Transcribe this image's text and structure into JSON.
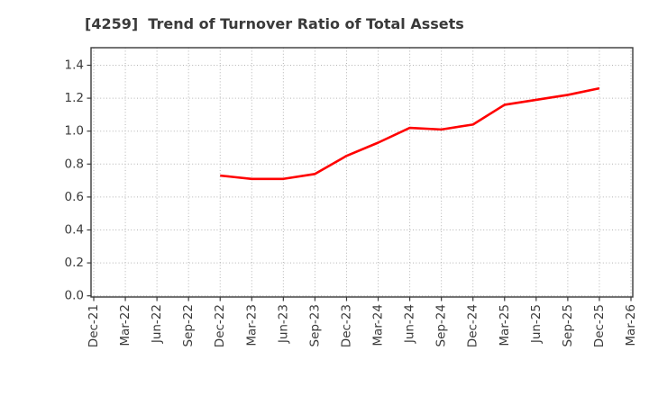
{
  "chart_data": {
    "type": "line",
    "title": "[4259]  Trend of Turnover Ratio of Total Assets",
    "xlabel": "",
    "ylabel": "",
    "categories": [
      "Dec-21",
      "Mar-22",
      "Jun-22",
      "Sep-22",
      "Dec-22",
      "Mar-23",
      "Jun-23",
      "Sep-23",
      "Dec-23",
      "Mar-24",
      "Jun-24",
      "Sep-24",
      "Dec-24",
      "Mar-25",
      "Jun-25",
      "Sep-25",
      "Dec-25",
      "Mar-26"
    ],
    "yticks": [
      0.0,
      0.2,
      0.4,
      0.6,
      0.8,
      1.0,
      1.2,
      1.4
    ],
    "ylim": [
      0.0,
      1.51
    ],
    "grid": "dotted",
    "legend_position": "none",
    "series": [
      {
        "name": "Turnover Ratio of Total Assets",
        "color": "#ff0000",
        "values": [
          null,
          null,
          null,
          null,
          0.73,
          0.71,
          0.71,
          0.74,
          0.85,
          0.93,
          1.02,
          1.01,
          1.04,
          1.16,
          1.19,
          1.22,
          1.26,
          null
        ]
      }
    ],
    "colors": {
      "background": "#ffffff",
      "text": "#3a3a3a",
      "grid": "#b3b3b3",
      "spine": "#3a3a3a",
      "line": "#ff0000"
    }
  }
}
